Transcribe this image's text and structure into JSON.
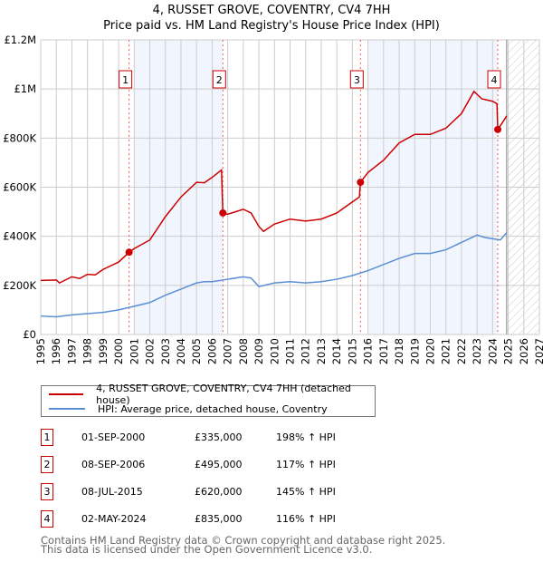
{
  "title": "4, RUSSET GROVE, COVENTRY, CV4 7HH",
  "subtitle": "Price paid vs. HM Land Registry's House Price Index (HPI)",
  "chart_data": {
    "type": "line",
    "title": "4, RUSSET GROVE, COVENTRY, CV4 7HH",
    "subtitle": "Price paid vs. HM Land Registry's House Price Index (HPI)",
    "xlim": [
      1995,
      2027
    ],
    "ylim": [
      0,
      1200000
    ],
    "grid": true,
    "x_ticks": [
      "1995",
      "1996",
      "1997",
      "1998",
      "1999",
      "2000",
      "2001",
      "2002",
      "2003",
      "2004",
      "2005",
      "2006",
      "2007",
      "2008",
      "2009",
      "2010",
      "2011",
      "2012",
      "2013",
      "2014",
      "2015",
      "2016",
      "2017",
      "2018",
      "2019",
      "2020",
      "2021",
      "2022",
      "2023",
      "2024",
      "2025",
      "2026",
      "2027"
    ],
    "y_ticks": [
      {
        "v": 0,
        "label": "£0"
      },
      {
        "v": 200000,
        "label": "£200K"
      },
      {
        "v": 400000,
        "label": "£400K"
      },
      {
        "v": 600000,
        "label": "£600K"
      },
      {
        "v": 800000,
        "label": "£800K"
      },
      {
        "v": 1000000,
        "label": "£1M"
      },
      {
        "v": 1200000,
        "label": "£1.2M"
      }
    ],
    "shaded_ranges": [
      [
        2001.0,
        2006.69
      ],
      [
        2016.0,
        2024.33
      ]
    ],
    "forecast_hatch_from": 2024.9,
    "series": [
      {
        "name": "4, RUSSET GROVE, COVENTRY, CV4 7HH (detached house)",
        "color": "#cc0000",
        "x": [
          1995,
          1996,
          1996.2,
          1997,
          1997.5,
          1998,
          1998.5,
          1999,
          2000,
          2000.67,
          2001,
          2002,
          2003,
          2004,
          2005,
          2005.5,
          2006,
          2006.6,
          2006.69,
          2007,
          2008,
          2008.5,
          2009,
          2009.3,
          2010,
          2011,
          2012,
          2013,
          2014,
          2015,
          2015.45,
          2015.52,
          2016,
          2017,
          2018,
          2019,
          2020,
          2021,
          2022,
          2022.8,
          2023.3,
          2024,
          2024.28,
          2024.33,
          2024.6,
          2024.9
        ],
        "y": [
          220000,
          222000,
          210000,
          235000,
          228000,
          245000,
          243000,
          265000,
          295000,
          335000,
          350000,
          385000,
          480000,
          560000,
          620000,
          618000,
          640000,
          670000,
          495000,
          490000,
          510000,
          495000,
          440000,
          420000,
          450000,
          470000,
          462000,
          470000,
          495000,
          540000,
          560000,
          620000,
          660000,
          710000,
          780000,
          815000,
          815000,
          840000,
          900000,
          990000,
          960000,
          950000,
          940000,
          835000,
          860000,
          890000
        ]
      },
      {
        "name": "HPI: Average price, detached house, Coventry",
        "color": "#5b8fd4",
        "x": [
          1995,
          1996,
          1997,
          1998,
          1999,
          2000,
          2001,
          2002,
          2003,
          2004,
          2005,
          2005.5,
          2006,
          2007,
          2008,
          2008.5,
          2009,
          2010,
          2011,
          2012,
          2013,
          2014,
          2015,
          2016,
          2017,
          2018,
          2019,
          2020,
          2021,
          2022,
          2023,
          2023.5,
          2024,
          2024.5,
          2024.9
        ],
        "y": [
          75000,
          72000,
          80000,
          85000,
          90000,
          100000,
          115000,
          130000,
          160000,
          185000,
          210000,
          215000,
          215000,
          225000,
          235000,
          230000,
          195000,
          210000,
          215000,
          210000,
          215000,
          225000,
          240000,
          260000,
          285000,
          310000,
          330000,
          330000,
          345000,
          375000,
          405000,
          395000,
          390000,
          385000,
          415000
        ]
      }
    ],
    "sales": [
      {
        "n": "1",
        "x": 2000.67,
        "y": 335000
      },
      {
        "n": "2",
        "x": 2006.69,
        "y": 495000
      },
      {
        "n": "3",
        "x": 2015.52,
        "y": 620000
      },
      {
        "n": "4",
        "x": 2024.33,
        "y": 835000
      }
    ]
  },
  "legend": {
    "property": "4, RUSSET GROVE, COVENTRY, CV4 7HH (detached house)",
    "hpi": "HPI: Average price, detached house, Coventry"
  },
  "transactions": [
    {
      "n": "1",
      "date": "01-SEP-2000",
      "price": "£335,000",
      "hpi": "198% ↑ HPI"
    },
    {
      "n": "2",
      "date": "08-SEP-2006",
      "price": "£495,000",
      "hpi": "117% ↑ HPI"
    },
    {
      "n": "3",
      "date": "08-JUL-2015",
      "price": "£620,000",
      "hpi": "145% ↑ HPI"
    },
    {
      "n": "4",
      "date": "02-MAY-2024",
      "price": "£835,000",
      "hpi": "116% ↑ HPI"
    }
  ],
  "footer": {
    "line1": "Contains HM Land Registry data © Crown copyright and database right 2025.",
    "line2": "This data is licensed under the Open Government Licence v3.0."
  }
}
